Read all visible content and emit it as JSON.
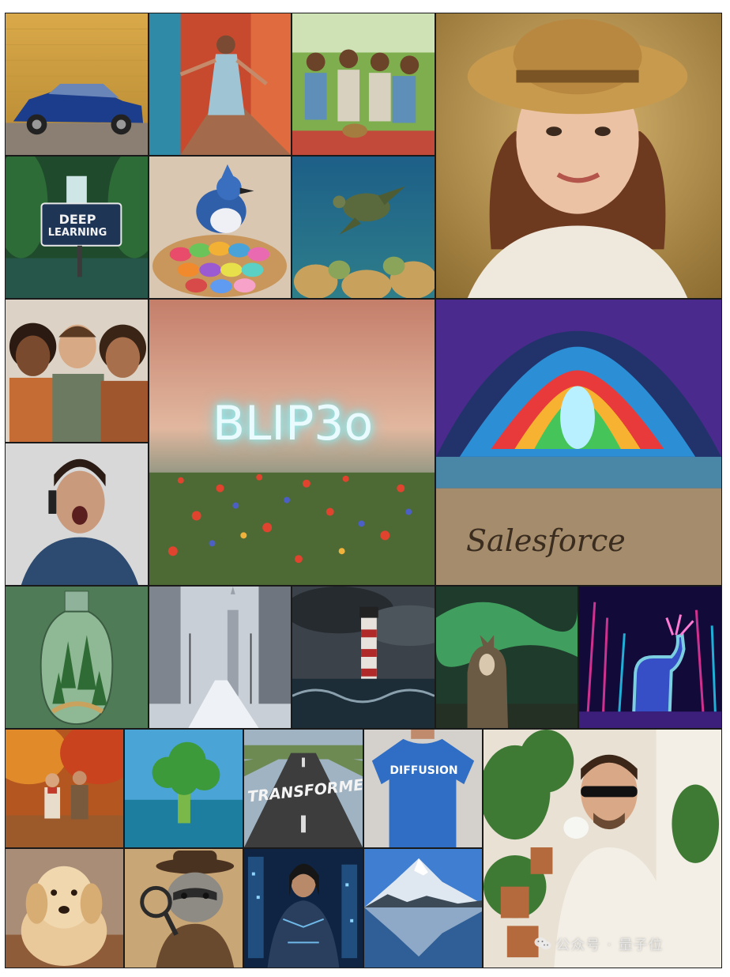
{
  "captions": {
    "deep_learning_sign_line1": "DEEP",
    "deep_learning_sign_line2": "LEARNING",
    "blip3o": "BLIP3o",
    "salesforce": "Salesforce",
    "transformer": "TRANSFORMER",
    "diffusion": "DIFFUSION"
  },
  "watermark": {
    "text": "公众号 · 量子位",
    "icon": "wechat-icon"
  },
  "tiles": [
    {
      "id": "blue-sedan",
      "subject": "blue sedan car"
    },
    {
      "id": "dancing-woman",
      "subject": "dancing woman in alley"
    },
    {
      "id": "picnic-friends",
      "subject": "friends picnic"
    },
    {
      "id": "straw-hat-woman",
      "subject": "woman with straw hat"
    },
    {
      "id": "deep-learning-waterfall",
      "subject": "waterfall with sign"
    },
    {
      "id": "blue-jay-macarons",
      "subject": "blue jay on macarons"
    },
    {
      "id": "sea-turtle",
      "subject": "sea turtle over reef"
    },
    {
      "id": "three-friends",
      "subject": "three smiling friends"
    },
    {
      "id": "blip3o-field",
      "subject": "flower field with glowing text"
    },
    {
      "id": "salesforce-cave",
      "subject": "rainbow cave with sand writing"
    },
    {
      "id": "phone-man",
      "subject": "surprised man on phone"
    },
    {
      "id": "forest-bottle",
      "subject": "forest in a bottle"
    },
    {
      "id": "snowy-city",
      "subject": "snowy city street"
    },
    {
      "id": "lighthouse-storm",
      "subject": "lighthouse in storm"
    },
    {
      "id": "wolf-aurora",
      "subject": "wolf under aurora"
    },
    {
      "id": "neon-deer",
      "subject": "neon deer in jungle"
    },
    {
      "id": "autumn-couple",
      "subject": "couple walking in autumn"
    },
    {
      "id": "broccoli-sea",
      "subject": "broccoli in ocean"
    },
    {
      "id": "transformer-road",
      "subject": "road with text"
    },
    {
      "id": "diffusion-shirt",
      "subject": "blue t-shirt with text"
    },
    {
      "id": "coffee-man",
      "subject": "man drinking coffee among plants"
    },
    {
      "id": "golden-retriever",
      "subject": "golden retriever"
    },
    {
      "id": "raccoon-detective",
      "subject": "raccoon detective"
    },
    {
      "id": "cyber-woman",
      "subject": "cyberpunk woman"
    },
    {
      "id": "mountain-lake",
      "subject": "mountain reflection"
    }
  ]
}
